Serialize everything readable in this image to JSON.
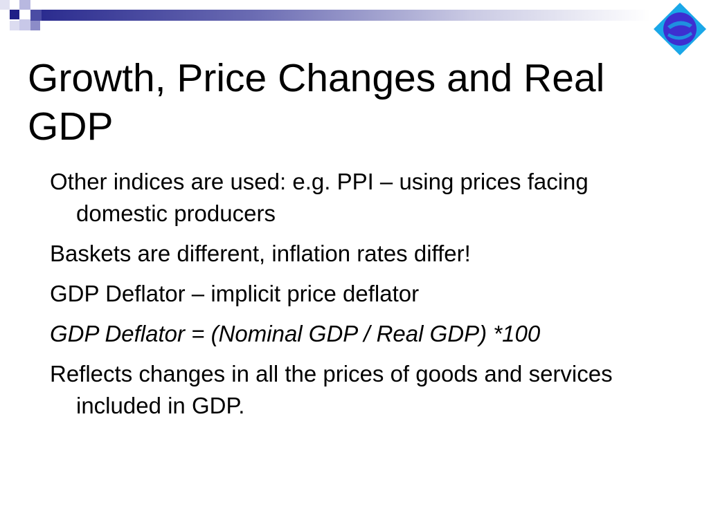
{
  "slide": {
    "title": "Growth, Price Changes and Real GDP",
    "bullets": [
      {
        "text": "Other indices are used: e.g. PPI – using prices facing domestic producers",
        "italic": false
      },
      {
        "text": "Baskets are different, inflation rates differ!",
        "italic": false
      },
      {
        "text": "GDP Deflator – implicit price deflator",
        "italic": false
      },
      {
        "text": "GDP Deflator = (Nominal GDP / Real GDP) *100",
        "italic": true
      },
      {
        "text": "Reflects changes in all the prices of goods and services included in GDP.",
        "italic": false
      }
    ]
  },
  "theme": {
    "accent": "#2b2c8f",
    "logo_outer": "#1aa7e8",
    "logo_inner": "#3d2fd0",
    "logo_mark": "#1f8fe0"
  },
  "icons": {
    "logo": "globe-diamond-icon"
  }
}
